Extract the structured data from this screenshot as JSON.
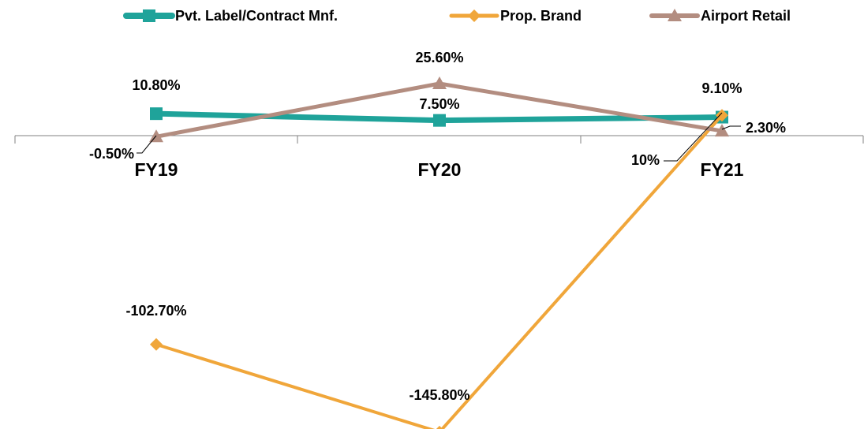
{
  "chart_data": {
    "type": "line",
    "categories": [
      "FY19",
      "FY20",
      "FY21"
    ],
    "legend_position": "top",
    "grid": false,
    "series": [
      {
        "name": "Pvt. Label/Contract Mnf.",
        "values": [
          10.8,
          7.5,
          9.1
        ],
        "labels": [
          "10.80%",
          "7.50%",
          "9.10%"
        ],
        "color": "#1fa39a",
        "marker": "square"
      },
      {
        "name": "Prop. Brand",
        "values": [
          -102.7,
          -145.8,
          10
        ],
        "labels": [
          "-102.70%",
          "-145.80%",
          "10%"
        ],
        "color": "#f0a63a",
        "marker": "diamond"
      },
      {
        "name": "Airport Retail",
        "values": [
          -0.5,
          25.6,
          2.3
        ],
        "labels": [
          "-0.50%",
          "25.60%",
          "2.30%"
        ],
        "color": "#b38d80",
        "marker": "triangle"
      }
    ]
  }
}
